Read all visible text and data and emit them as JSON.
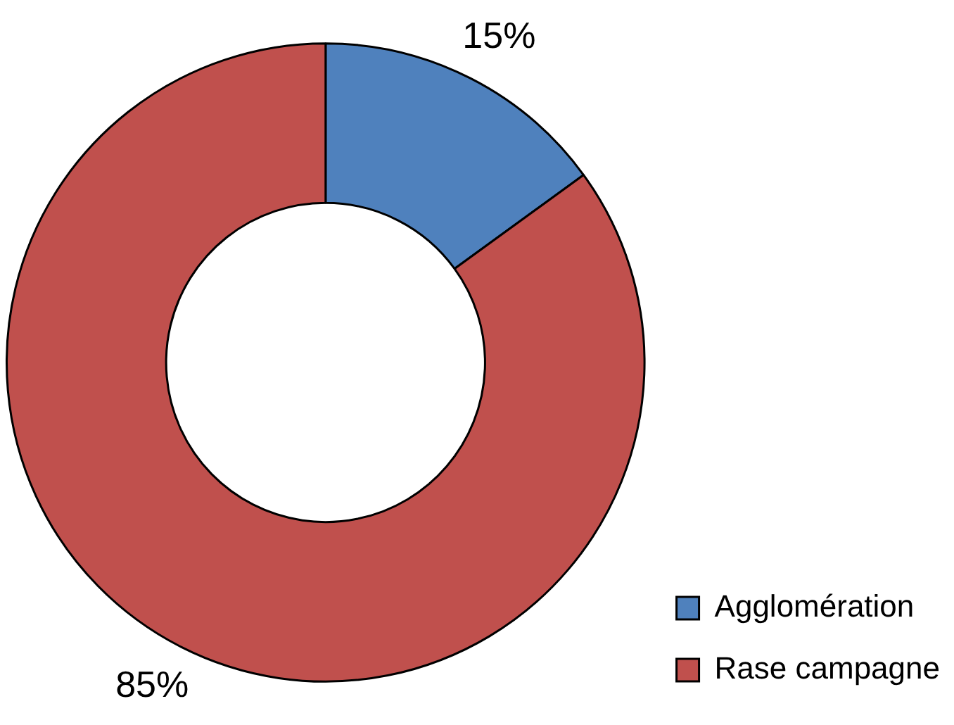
{
  "chart_data": {
    "type": "donut",
    "categories": [
      "Agglomération",
      "Rase campagne"
    ],
    "values": [
      15,
      85
    ],
    "colors": [
      "#4f81bd",
      "#c0504d"
    ],
    "value_labels": [
      "15%",
      "85%"
    ],
    "legend": "bottom right"
  }
}
